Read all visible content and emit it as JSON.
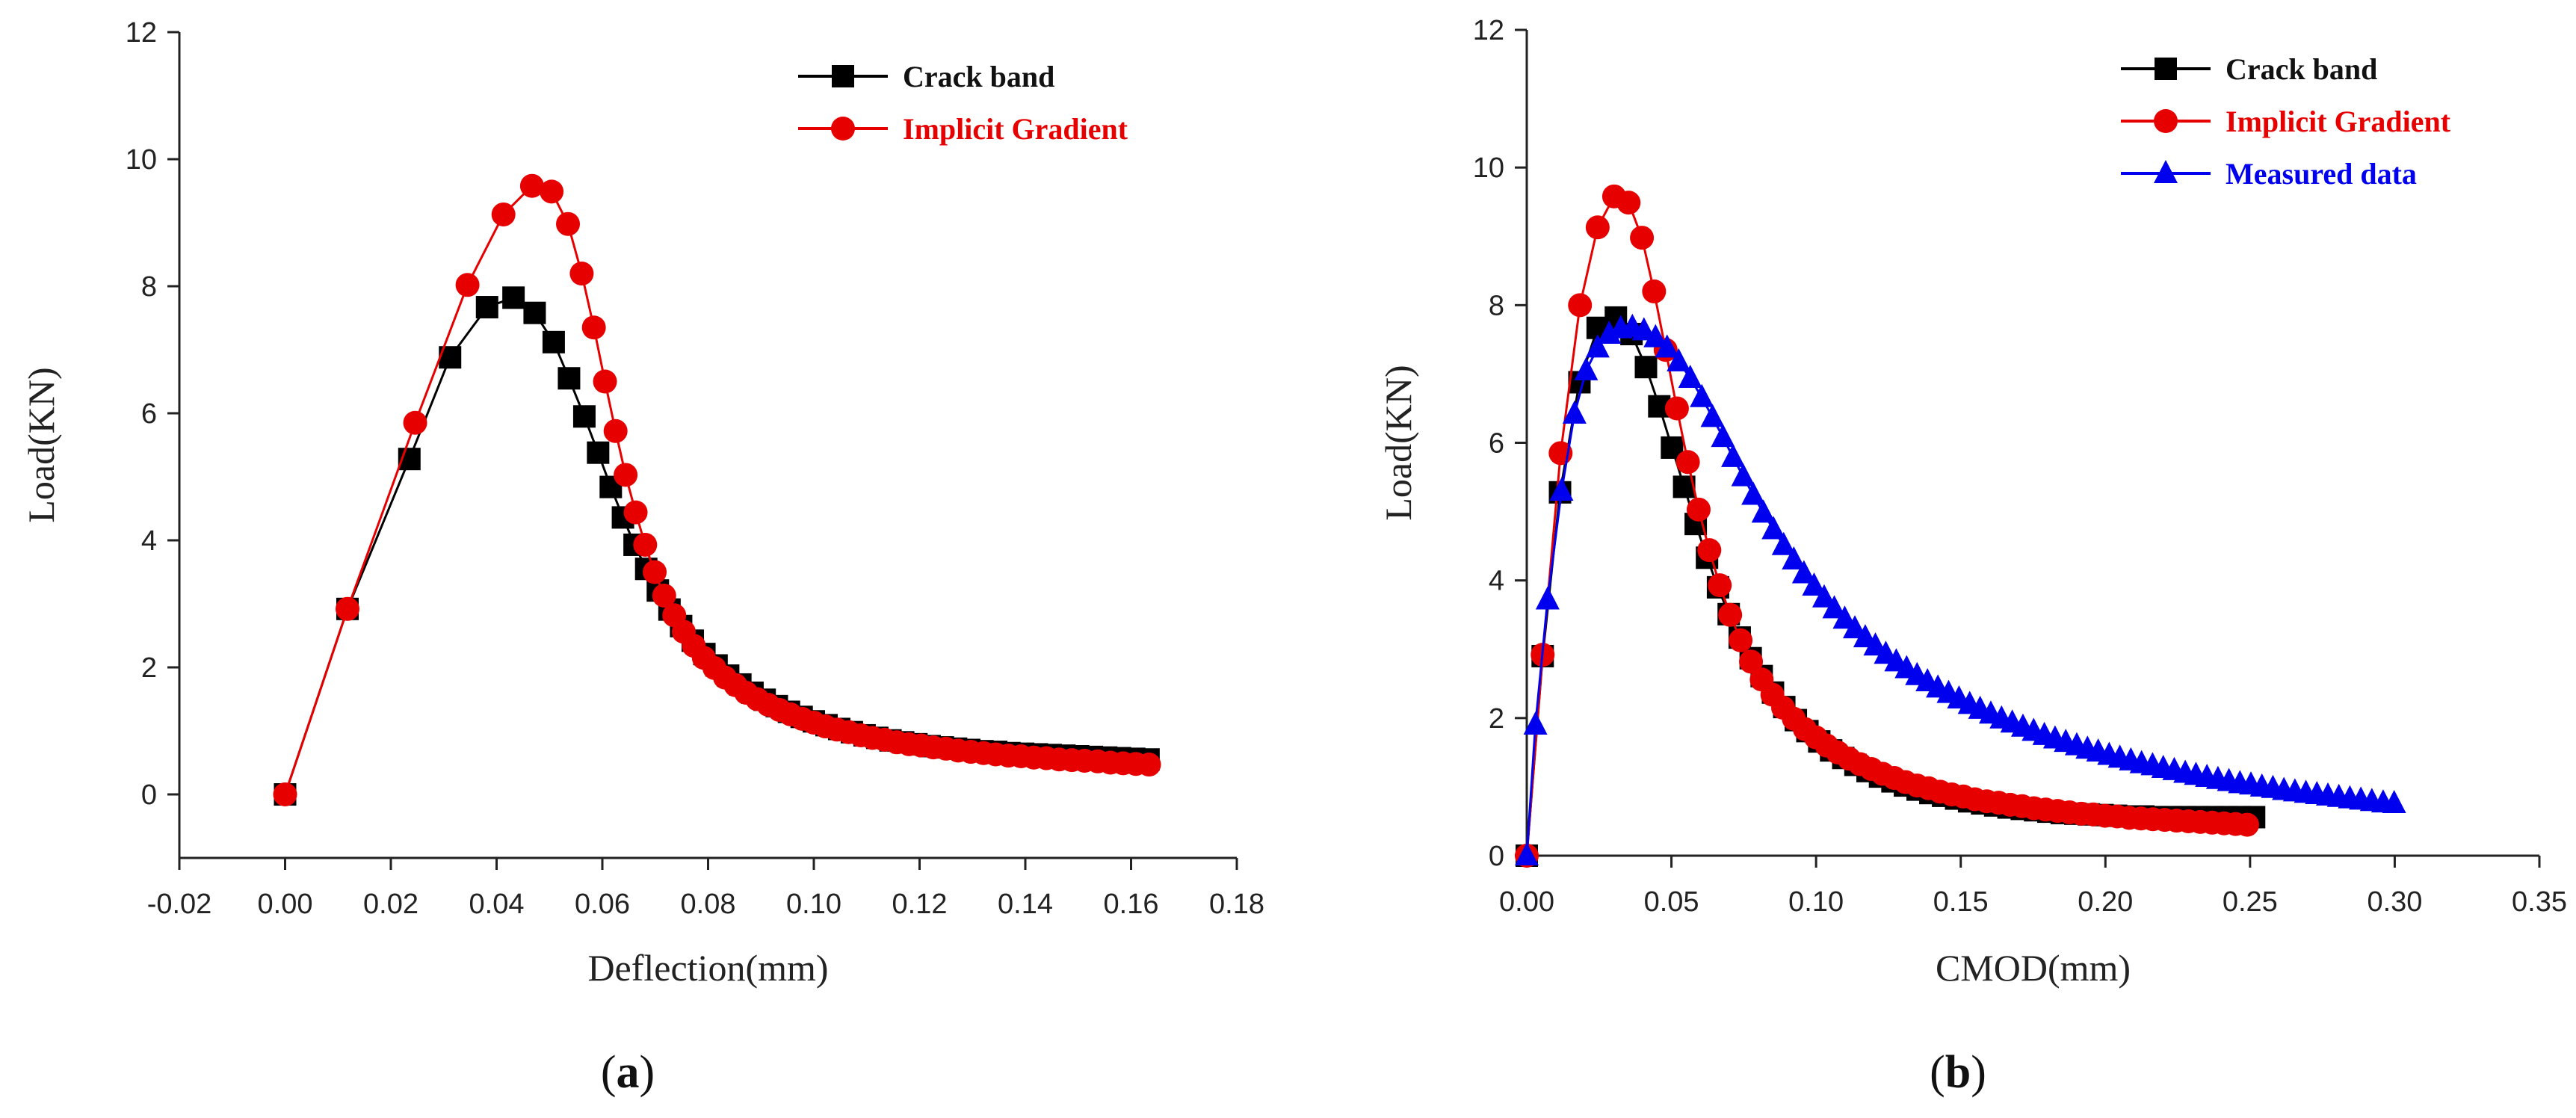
{
  "chart_data": [
    {
      "type": "line",
      "panel_label": "a",
      "xlabel": "Deflection(mm)",
      "ylabel": "Load(KN)",
      "xlim": [
        -0.02,
        0.18
      ],
      "ylim": [
        -1,
        12
      ],
      "xticks": [
        "-0.02",
        "0.00",
        "0.02",
        "0.04",
        "0.06",
        "0.08",
        "0.10",
        "0.12",
        "0.14",
        "0.16",
        "0.18"
      ],
      "yticks": [
        "0",
        "2",
        "4",
        "6",
        "8",
        "10",
        "12"
      ],
      "legend_position": "top-right",
      "series": [
        {
          "name": "Crack band",
          "color": "#000000",
          "marker": "square",
          "x": [
            0.0,
            0.0118,
            0.0235,
            0.0312,
            0.0382,
            0.0432,
            0.0472,
            0.0508,
            0.0537,
            0.0566,
            0.0592,
            0.0616,
            0.0639,
            0.0661,
            0.0683,
            0.0705,
            0.0727,
            0.0749,
            0.0771,
            0.0793,
            0.0816,
            0.0838,
            0.0861,
            0.0884,
            0.0907,
            0.093,
            0.0953,
            0.0977,
            0.1,
            0.1024,
            0.1048,
            0.1072,
            0.1096,
            0.112,
            0.1145,
            0.1169,
            0.1194,
            0.1219,
            0.1244,
            0.1269,
            0.1294,
            0.1319,
            0.1345,
            0.137,
            0.1396,
            0.1422,
            0.1448,
            0.1474,
            0.15,
            0.1526,
            0.1553,
            0.1579,
            0.1606,
            0.1633
          ],
          "y": [
            0.0,
            2.92,
            5.28,
            6.88,
            7.67,
            7.82,
            7.58,
            7.12,
            6.55,
            5.95,
            5.38,
            4.84,
            4.36,
            3.93,
            3.55,
            3.21,
            2.91,
            2.65,
            2.42,
            2.21,
            2.03,
            1.87,
            1.73,
            1.6,
            1.49,
            1.39,
            1.3,
            1.22,
            1.15,
            1.09,
            1.03,
            0.98,
            0.93,
            0.89,
            0.85,
            0.82,
            0.79,
            0.76,
            0.74,
            0.72,
            0.7,
            0.68,
            0.67,
            0.65,
            0.64,
            0.63,
            0.62,
            0.61,
            0.6,
            0.59,
            0.58,
            0.57,
            0.56,
            0.55
          ]
        },
        {
          "name": "Implicit Gradient",
          "color": "#e60000",
          "marker": "circle",
          "x": [
            0.0,
            0.0118,
            0.0246,
            0.0345,
            0.0413,
            0.0467,
            0.0504,
            0.0535,
            0.0561,
            0.0584,
            0.0605,
            0.0625,
            0.0644,
            0.0663,
            0.0681,
            0.0699,
            0.0717,
            0.0736,
            0.0754,
            0.0773,
            0.0792,
            0.0812,
            0.0832,
            0.0852,
            0.0872,
            0.0893,
            0.0914,
            0.0935,
            0.0956,
            0.0978,
            0.1,
            0.1022,
            0.1044,
            0.1066,
            0.1089,
            0.1111,
            0.1134,
            0.1157,
            0.118,
            0.1203,
            0.1226,
            0.125,
            0.1273,
            0.1297,
            0.1321,
            0.1344,
            0.1368,
            0.1392,
            0.1416,
            0.144,
            0.1464,
            0.1488,
            0.1512,
            0.1537,
            0.1561,
            0.1585,
            0.1609,
            0.1634
          ],
          "y": [
            0.0,
            2.92,
            5.85,
            8.02,
            9.13,
            9.58,
            9.49,
            8.98,
            8.2,
            7.35,
            6.5,
            5.72,
            5.03,
            4.44,
            3.93,
            3.5,
            3.13,
            2.82,
            2.56,
            2.34,
            2.15,
            1.99,
            1.84,
            1.72,
            1.6,
            1.5,
            1.41,
            1.33,
            1.26,
            1.19,
            1.13,
            1.07,
            1.02,
            0.98,
            0.93,
            0.89,
            0.86,
            0.82,
            0.79,
            0.77,
            0.74,
            0.72,
            0.69,
            0.67,
            0.65,
            0.63,
            0.61,
            0.6,
            0.58,
            0.57,
            0.55,
            0.54,
            0.53,
            0.52,
            0.5,
            0.49,
            0.48,
            0.47
          ]
        }
      ]
    },
    {
      "type": "line",
      "panel_label": "b",
      "xlabel": "CMOD(mm)",
      "ylabel": "Load(KN)",
      "xlim": [
        0.0,
        0.35
      ],
      "ylim": [
        0,
        12
      ],
      "xticks": [
        "0.00",
        "0.05",
        "0.10",
        "0.15",
        "0.20",
        "0.25",
        "0.30",
        "0.35"
      ],
      "yticks": [
        "0",
        "2",
        "4",
        "6",
        "8",
        "10",
        "12"
      ],
      "legend_position": "top-right",
      "series": [
        {
          "name": "Crack band",
          "color": "#000000",
          "marker": "square",
          "x": [
            0.0,
            0.0055,
            0.0115,
            0.0182,
            0.0245,
            0.0308,
            0.0362,
            0.0412,
            0.0458,
            0.0502,
            0.0544,
            0.0584,
            0.0623,
            0.0661,
            0.0698,
            0.0736,
            0.0774,
            0.0812,
            0.0851,
            0.089,
            0.093,
            0.097,
            0.1011,
            0.1052,
            0.1094,
            0.1136,
            0.1178,
            0.1221,
            0.1264,
            0.1307,
            0.1351,
            0.1395,
            0.1439,
            0.1484,
            0.1529,
            0.1574,
            0.1619,
            0.1665,
            0.1711,
            0.1757,
            0.1803,
            0.1849,
            0.1896,
            0.1943,
            0.199,
            0.2037,
            0.2084,
            0.2131,
            0.2179,
            0.2226,
            0.2274,
            0.2322,
            0.237,
            0.2418,
            0.2466,
            0.2514
          ],
          "y": [
            0.0,
            2.9,
            5.28,
            6.88,
            7.67,
            7.82,
            7.58,
            7.1,
            6.53,
            5.93,
            5.36,
            4.82,
            4.33,
            3.9,
            3.51,
            3.17,
            2.87,
            2.61,
            2.37,
            2.16,
            1.97,
            1.81,
            1.66,
            1.53,
            1.42,
            1.32,
            1.23,
            1.15,
            1.08,
            1.02,
            0.96,
            0.91,
            0.87,
            0.83,
            0.79,
            0.76,
            0.73,
            0.7,
            0.68,
            0.66,
            0.64,
            0.62,
            0.61,
            0.6,
            0.59,
            0.58,
            0.57,
            0.57,
            0.56,
            0.56,
            0.56,
            0.56,
            0.56,
            0.56,
            0.56,
            0.56
          ]
        },
        {
          "name": "Implicit Gradient",
          "color": "#e60000",
          "marker": "circle",
          "x": [
            0.0,
            0.0055,
            0.0117,
            0.0184,
            0.0245,
            0.0302,
            0.0352,
            0.0398,
            0.044,
            0.048,
            0.0519,
            0.0557,
            0.0594,
            0.0631,
            0.0667,
            0.0703,
            0.0739,
            0.0775,
            0.0812,
            0.0849,
            0.0886,
            0.0923,
            0.0961,
            0.0999,
            0.1037,
            0.1075,
            0.1114,
            0.1152,
            0.1191,
            0.123,
            0.127,
            0.1309,
            0.1349,
            0.1389,
            0.1429,
            0.1469,
            0.1509,
            0.1549,
            0.159,
            0.1631,
            0.1671,
            0.1712,
            0.1753,
            0.1794,
            0.1835,
            0.1876,
            0.1917,
            0.1958,
            0.1999,
            0.2041,
            0.2082,
            0.2123,
            0.2164,
            0.2205,
            0.2246,
            0.2287,
            0.2328,
            0.2369,
            0.241,
            0.245,
            0.249
          ],
          "y": [
            0.0,
            2.92,
            5.85,
            8.0,
            9.13,
            9.58,
            9.49,
            8.98,
            8.2,
            7.35,
            6.5,
            5.72,
            5.03,
            4.44,
            3.93,
            3.5,
            3.13,
            2.82,
            2.56,
            2.34,
            2.15,
            1.99,
            1.84,
            1.72,
            1.6,
            1.5,
            1.41,
            1.33,
            1.26,
            1.19,
            1.13,
            1.07,
            1.02,
            0.98,
            0.93,
            0.89,
            0.86,
            0.82,
            0.79,
            0.77,
            0.74,
            0.72,
            0.69,
            0.67,
            0.65,
            0.63,
            0.61,
            0.6,
            0.58,
            0.57,
            0.55,
            0.54,
            0.53,
            0.52,
            0.51,
            0.5,
            0.49,
            0.48,
            0.47,
            0.46,
            0.45
          ]
        },
        {
          "name": "Measured data",
          "color": "#0000ee",
          "marker": "triangle",
          "x": [
            0.0,
            0.003,
            0.0072,
            0.012,
            0.0165,
            0.0205,
            0.0245,
            0.0285,
            0.0325,
            0.0365,
            0.0405,
            0.0445,
            0.0485,
            0.0525,
            0.0565,
            0.0605,
            0.0642,
            0.0678,
            0.0713,
            0.0748,
            0.0783,
            0.0818,
            0.0853,
            0.0888,
            0.0923,
            0.0958,
            0.0993,
            0.1028,
            0.1063,
            0.1099,
            0.1134,
            0.117,
            0.1205,
            0.1241,
            0.1277,
            0.1313,
            0.1349,
            0.1385,
            0.1421,
            0.1458,
            0.1494,
            0.1531,
            0.1567,
            0.1604,
            0.1641,
            0.1678,
            0.1715,
            0.1752,
            0.1789,
            0.1826,
            0.1863,
            0.1901,
            0.1938,
            0.1975,
            0.2013,
            0.205,
            0.2088,
            0.2125,
            0.2163,
            0.22,
            0.2238,
            0.2276,
            0.2313,
            0.2351,
            0.2389,
            0.2427,
            0.2465,
            0.2503,
            0.2541,
            0.2579,
            0.2617,
            0.2655,
            0.2693,
            0.2731,
            0.2769,
            0.2807,
            0.2845,
            0.2883,
            0.2921,
            0.296,
            0.2998
          ],
          "y": [
            0.0,
            1.9,
            3.72,
            5.3,
            6.42,
            7.05,
            7.38,
            7.58,
            7.66,
            7.68,
            7.63,
            7.53,
            7.38,
            7.18,
            6.94,
            6.66,
            6.37,
            6.08,
            5.79,
            5.51,
            5.24,
            4.98,
            4.74,
            4.51,
            4.3,
            4.1,
            3.92,
            3.75,
            3.59,
            3.44,
            3.3,
            3.17,
            3.05,
            2.93,
            2.82,
            2.72,
            2.62,
            2.53,
            2.44,
            2.36,
            2.28,
            2.2,
            2.13,
            2.06,
            1.99,
            1.93,
            1.87,
            1.81,
            1.75,
            1.7,
            1.65,
            1.6,
            1.55,
            1.51,
            1.46,
            1.42,
            1.38,
            1.34,
            1.31,
            1.27,
            1.24,
            1.2,
            1.17,
            1.14,
            1.11,
            1.08,
            1.05,
            1.03,
            1.0,
            0.98,
            0.95,
            0.93,
            0.91,
            0.89,
            0.87,
            0.85,
            0.83,
            0.81,
            0.79,
            0.77,
            0.76
          ]
        }
      ]
    }
  ]
}
